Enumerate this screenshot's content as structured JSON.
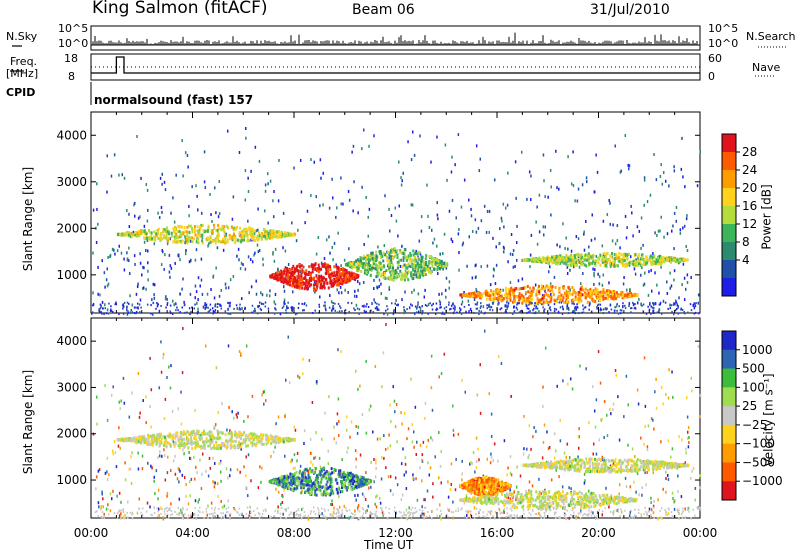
{
  "header": {
    "station": "King Salmon (fitACF)",
    "beam": "Beam 06",
    "date": "31/Jul/2010"
  },
  "top_panel": {
    "nsky_label": "N.Sky",
    "nsearch_label": "N.Search",
    "left_ticks": [
      "10^5",
      "10^0"
    ],
    "right_ticks": [
      "10^5",
      "10^0"
    ]
  },
  "freq_panel": {
    "label_top": "Freq.",
    "label_unit": "[MHz]",
    "left_ticks": [
      "18",
      "8"
    ],
    "right_ticks": [
      "60",
      "0"
    ],
    "nave_label": "Nave"
  },
  "cpid": {
    "label": "CPID",
    "mode": "normalsound (fast) 157"
  },
  "chart_data": [
    {
      "type": "heatmap",
      "name": "Power",
      "ylabel": "Slant Range [km]",
      "xlabel": "Time UT",
      "xticks": [
        "00:00",
        "04:00",
        "08:00",
        "12:00",
        "16:00",
        "20:00",
        "00:00"
      ],
      "yticks": [
        1000,
        2000,
        3000,
        4000
      ],
      "ylim": [
        180,
        4500
      ],
      "colorbar": {
        "label": "Power [dB]",
        "ticks": [
          "28",
          "24",
          "20",
          "16",
          "12",
          "8",
          "4"
        ],
        "colors": [
          "#e0141e",
          "#ff5a00",
          "#ff9c00",
          "#ffd21e",
          "#b4dc3c",
          "#3cb45a",
          "#2d8a6e",
          "#2050a8",
          "#1e1ee6"
        ]
      },
      "features": [
        {
          "x": [
            1.0,
            8.0
          ],
          "y": [
            1700,
            2100
          ],
          "level": 0.5
        },
        {
          "x": [
            7.0,
            10.5
          ],
          "y": [
            700,
            1300
          ],
          "level": 0.95
        },
        {
          "x": [
            10.0,
            14.0
          ],
          "y": [
            900,
            1600
          ],
          "level": 0.35
        },
        {
          "x": [
            14.5,
            21.5
          ],
          "y": [
            400,
            800
          ],
          "level": 0.7
        },
        {
          "x": [
            17.0,
            23.5
          ],
          "y": [
            1200,
            1500
          ],
          "level": 0.45
        }
      ]
    },
    {
      "type": "heatmap",
      "name": "Velocity",
      "ylabel": "Slant Range [km]",
      "xlabel": "Time UT",
      "xticks": [
        "00:00",
        "04:00",
        "08:00",
        "12:00",
        "16:00",
        "20:00",
        "00:00"
      ],
      "yticks": [
        1000,
        2000,
        3000,
        4000
      ],
      "ylim": [
        180,
        4500
      ],
      "colorbar": {
        "label": "Velocity [m s⁻¹]",
        "ticks": [
          "1000",
          "500",
          "100",
          "25",
          "−25",
          "−100",
          "−500",
          "−1000"
        ],
        "colors": [
          "#1e28c8",
          "#2d64b4",
          "#3cbe3c",
          "#a0dc50",
          "#c8c8c8",
          "#ffd21e",
          "#ff9c00",
          "#ff5a00",
          "#e0141e"
        ]
      },
      "features": [
        {
          "x": [
            1.0,
            8.0
          ],
          "y": [
            1700,
            2100
          ],
          "level": 0.45
        },
        {
          "x": [
            7.0,
            11.0
          ],
          "y": [
            700,
            1300
          ],
          "level": 0.75
        },
        {
          "x": [
            14.5,
            16.5
          ],
          "y": [
            700,
            1100
          ],
          "level": 0.15
        },
        {
          "x": [
            14.5,
            21.5
          ],
          "y": [
            400,
            800
          ],
          "level": 0.45
        },
        {
          "x": [
            17.0,
            23.5
          ],
          "y": [
            1200,
            1500
          ],
          "level": 0.45
        }
      ]
    }
  ]
}
